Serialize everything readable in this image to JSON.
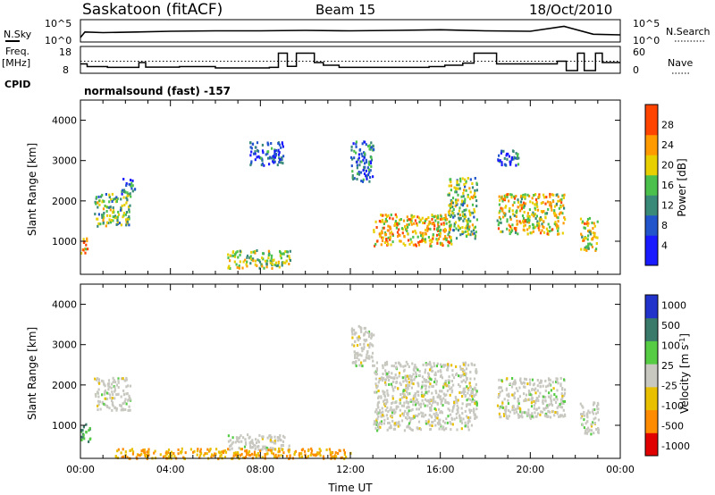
{
  "header": {
    "station": "Saskatoon (fitACF)",
    "beam": "Beam 15",
    "date": "18/Oct/2010"
  },
  "noise_panel": {
    "left_label": "N.Sky",
    "left_ticks": [
      "10^5",
      "10^0"
    ],
    "right_label": "N.Search",
    "right_ticks": [
      "10^5",
      "10^0"
    ],
    "sky_series": [
      {
        "t": 0.0,
        "v": 0.2
      },
      {
        "t": 0.2,
        "v": 0.45
      },
      {
        "t": 1.0,
        "v": 0.42
      },
      {
        "t": 2.5,
        "v": 0.45
      },
      {
        "t": 4.0,
        "v": 0.48
      },
      {
        "t": 6.0,
        "v": 0.5
      },
      {
        "t": 8.0,
        "v": 0.5
      },
      {
        "t": 10.0,
        "v": 0.52
      },
      {
        "t": 12.0,
        "v": 0.5
      },
      {
        "t": 14.0,
        "v": 0.52
      },
      {
        "t": 16.0,
        "v": 0.55
      },
      {
        "t": 18.0,
        "v": 0.5
      },
      {
        "t": 20.0,
        "v": 0.48
      },
      {
        "t": 21.5,
        "v": 0.7
      },
      {
        "t": 22.8,
        "v": 0.35
      },
      {
        "t": 24.0,
        "v": 0.32
      }
    ]
  },
  "freq_panel": {
    "left_label_1": "Freq.",
    "left_label_2": "[MHz]",
    "left_ticks": [
      "18",
      "8"
    ],
    "right_label": "Nave",
    "right_ticks": [
      "60",
      "0"
    ],
    "cpid_label": "CPID",
    "program": "normalsound (fast) -157",
    "freq_steps": [
      {
        "t": 0.0,
        "f": 11.5
      },
      {
        "t": 0.3,
        "f": 10.5
      },
      {
        "t": 1.2,
        "f": 10.2
      },
      {
        "t": 2.6,
        "f": 12.0
      },
      {
        "t": 2.9,
        "f": 10.3
      },
      {
        "t": 4.4,
        "f": 10.5
      },
      {
        "t": 6.0,
        "f": 10.0
      },
      {
        "t": 8.4,
        "f": 10.2
      },
      {
        "t": 8.8,
        "f": 15.5
      },
      {
        "t": 9.2,
        "f": 10.6
      },
      {
        "t": 9.6,
        "f": 15.5
      },
      {
        "t": 10.4,
        "f": 12.0
      },
      {
        "t": 10.8,
        "f": 11.0
      },
      {
        "t": 11.5,
        "f": 10.2
      },
      {
        "t": 15.5,
        "f": 10.5
      },
      {
        "t": 16.2,
        "f": 11.0
      },
      {
        "t": 17.0,
        "f": 11.8
      },
      {
        "t": 17.5,
        "f": 15.5
      },
      {
        "t": 18.5,
        "f": 11.5
      },
      {
        "t": 19.8,
        "f": 11.5
      },
      {
        "t": 21.2,
        "f": 12.5
      },
      {
        "t": 21.6,
        "f": 9.0
      },
      {
        "t": 22.1,
        "f": 15.5
      },
      {
        "t": 22.4,
        "f": 9.0
      },
      {
        "t": 22.9,
        "f": 15.5
      },
      {
        "t": 23.2,
        "f": 12.0
      },
      {
        "t": 24.0,
        "f": 12.0
      }
    ],
    "nave_level": 12.5
  },
  "chart_data": [
    {
      "type": "heatmap",
      "title": "Power",
      "xlabel": "Time UT",
      "ylabel": "Slant Range [km]",
      "xlim": [
        0,
        24
      ],
      "ylim": [
        180,
        4500
      ],
      "x_ticks": [
        "00:00",
        "04:00",
        "08:00",
        "12:00",
        "16:00",
        "20:00",
        "00:00"
      ],
      "y_ticks": [
        "1000",
        "2000",
        "3000",
        "4000"
      ],
      "y_tick_values": [
        1000,
        2000,
        3000,
        4000
      ],
      "colorbar": {
        "label": "Power [dB]",
        "ticks": [
          "4",
          "8",
          "12",
          "16",
          "20",
          "24",
          "28"
        ],
        "tick_values": [
          4,
          8,
          12,
          16,
          20,
          24,
          28
        ],
        "range": [
          0,
          32
        ]
      },
      "echo_regions": [
        {
          "t0": 0.0,
          "t1": 0.3,
          "r0": 700,
          "r1": 1150,
          "v": 24
        },
        {
          "t0": 0.6,
          "t1": 2.2,
          "r0": 1400,
          "r1": 2200,
          "v": 16
        },
        {
          "t0": 1.8,
          "t1": 2.4,
          "r0": 2200,
          "r1": 2600,
          "v": 10
        },
        {
          "t0": 6.5,
          "t1": 9.3,
          "r0": 350,
          "r1": 800,
          "v": 18
        },
        {
          "t0": 7.5,
          "t1": 9.0,
          "r0": 2900,
          "r1": 3500,
          "v": 8
        },
        {
          "t0": 12.0,
          "t1": 13.0,
          "r0": 2500,
          "r1": 3500,
          "v": 10
        },
        {
          "t0": 13.0,
          "t1": 16.5,
          "r0": 900,
          "r1": 1700,
          "v": 22
        },
        {
          "t0": 16.3,
          "t1": 17.6,
          "r0": 1100,
          "r1": 2600,
          "v": 16
        },
        {
          "t0": 18.5,
          "t1": 21.5,
          "r0": 1200,
          "r1": 2200,
          "v": 20
        },
        {
          "t0": 18.5,
          "t1": 19.5,
          "r0": 2900,
          "r1": 3300,
          "v": 8
        },
        {
          "t0": 22.2,
          "t1": 23.0,
          "r0": 800,
          "r1": 1600,
          "v": 20
        }
      ]
    },
    {
      "type": "heatmap",
      "title": "Velocity",
      "xlabel": "Time UT",
      "ylabel": "Slant Range [km]",
      "xlim": [
        0,
        24
      ],
      "ylim": [
        180,
        4500
      ],
      "x_ticks": [
        "00:00",
        "04:00",
        "08:00",
        "12:00",
        "16:00",
        "20:00",
        "00:00"
      ],
      "y_ticks": [
        "1000",
        "2000",
        "3000",
        "4000"
      ],
      "y_tick_values": [
        1000,
        2000,
        3000,
        4000
      ],
      "colorbar": {
        "label": "Velocity [m s^-1]",
        "ticks": [
          "1000",
          "500",
          "100",
          "25",
          "-25",
          "-100",
          "-500",
          "-1000"
        ]
      },
      "echo_regions": [
        {
          "t0": 0.0,
          "t1": 0.4,
          "r0": 600,
          "r1": 1100,
          "v": 100
        },
        {
          "t0": 0.6,
          "t1": 2.2,
          "r0": 1400,
          "r1": 2200,
          "v": 0
        },
        {
          "t0": 6.5,
          "t1": 9.3,
          "r0": 400,
          "r1": 800,
          "v": 0
        },
        {
          "t0": 12.0,
          "t1": 13.0,
          "r0": 2500,
          "r1": 3500,
          "v": 0
        },
        {
          "t0": 13.0,
          "t1": 17.6,
          "r0": 900,
          "r1": 2600,
          "v": 0
        },
        {
          "t0": 18.5,
          "t1": 21.5,
          "r0": 1200,
          "r1": 2200,
          "v": 0
        },
        {
          "t0": 22.2,
          "t1": 23.0,
          "r0": 800,
          "r1": 1600,
          "v": 0
        },
        {
          "t0": 1.5,
          "t1": 12.0,
          "r0": 200,
          "r1": 450,
          "v": -100
        }
      ]
    }
  ]
}
